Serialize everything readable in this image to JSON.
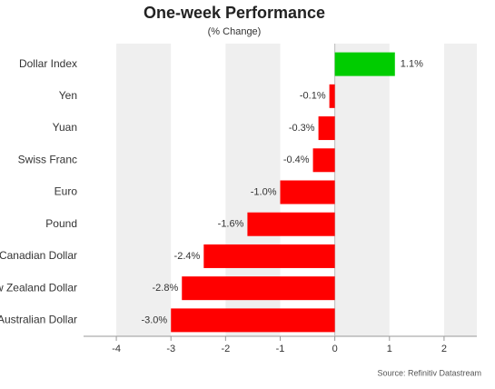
{
  "chart_data": {
    "type": "hbar",
    "title": "One-week Performance",
    "subtitle": "(% Change)",
    "source": "Source: Refinitiv Datastream",
    "categories": [
      "Dollar Index",
      "Yen",
      "Yuan",
      "Swiss Franc",
      "Euro",
      "Pound",
      "Canadian Dollar",
      "New Zealand Dollar",
      "Australian Dollar"
    ],
    "values": [
      1.1,
      -0.1,
      -0.3,
      -0.4,
      -1.0,
      -1.6,
      -2.4,
      -2.8,
      -3.0
    ],
    "value_labels": [
      "1.1%",
      "-0.1%",
      "-0.3%",
      "-0.4%",
      "-1.0%",
      "-1.6%",
      "-2.4%",
      "-2.8%",
      "-3.0%"
    ],
    "colors": [
      "#00cc00",
      "#ff0000",
      "#ff0000",
      "#ff0000",
      "#ff0000",
      "#ff0000",
      "#ff0000",
      "#ff0000",
      "#ff0000"
    ],
    "xlim": [
      -4.6,
      2.6
    ],
    "xticks": [
      -4,
      -3,
      -2,
      -1,
      0,
      1,
      2
    ],
    "bands": true
  }
}
